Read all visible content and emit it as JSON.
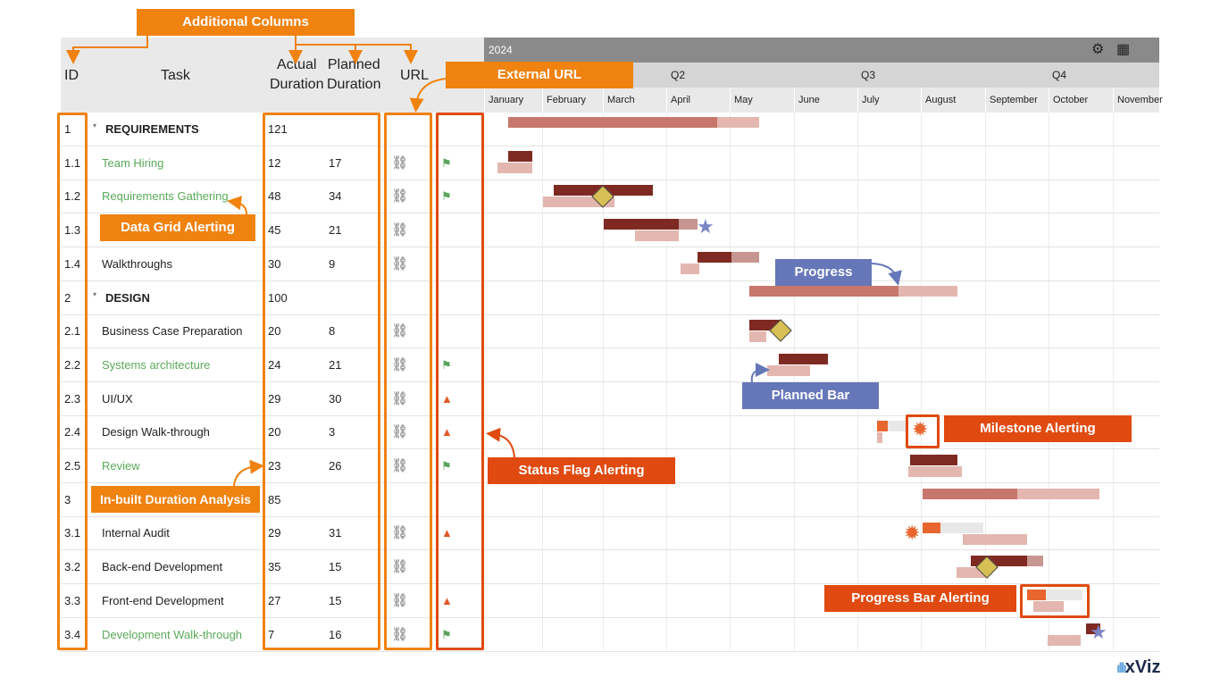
{
  "columns": {
    "id": "ID",
    "task": "Task",
    "actual_line1": "Actual",
    "actual_line2": "Duration",
    "planned_line1": "Planned",
    "planned_line2": "Duration",
    "url": "URL"
  },
  "gantt": {
    "year": "2024",
    "quarters": [
      "Q2",
      "Q3",
      "Q4"
    ],
    "months": [
      "January",
      "February",
      "March",
      "April",
      "May",
      "June",
      "July",
      "August",
      "September",
      "October",
      "November"
    ],
    "settings_icon": "gear-icon",
    "grid_icon": "table-icon"
  },
  "rows": [
    {
      "id": "1",
      "task": "REQUIREMENTS",
      "type": "group",
      "actual": "121",
      "planned": "",
      "url": false,
      "flag": ""
    },
    {
      "id": "1.1",
      "task": "Team Hiring",
      "type": "green",
      "actual": "12",
      "planned": "17",
      "url": true,
      "flag": "green"
    },
    {
      "id": "1.2",
      "task": "Requirements Gathering",
      "type": "green",
      "actual": "48",
      "planned": "34",
      "url": true,
      "flag": "green"
    },
    {
      "id": "1.3",
      "task": "",
      "type": "normal",
      "actual": "45",
      "planned": "21",
      "url": true,
      "flag": ""
    },
    {
      "id": "1.4",
      "task": "Walkthroughs",
      "type": "normal",
      "actual": "30",
      "planned": "9",
      "url": true,
      "flag": ""
    },
    {
      "id": "2",
      "task": "DESIGN",
      "type": "group",
      "actual": "100",
      "planned": "",
      "url": false,
      "flag": ""
    },
    {
      "id": "2.1",
      "task": "Business Case Preparation",
      "type": "normal",
      "actual": "20",
      "planned": "8",
      "url": true,
      "flag": ""
    },
    {
      "id": "2.2",
      "task": "Systems architecture",
      "type": "green",
      "actual": "24",
      "planned": "21",
      "url": true,
      "flag": "green"
    },
    {
      "id": "2.3",
      "task": "UI/UX",
      "type": "normal",
      "actual": "29",
      "planned": "30",
      "url": true,
      "flag": "warn"
    },
    {
      "id": "2.4",
      "task": "Design Walk-through",
      "type": "normal",
      "actual": "20",
      "planned": "3",
      "url": true,
      "flag": "warn"
    },
    {
      "id": "2.5",
      "task": "Review",
      "type": "green",
      "actual": "23",
      "planned": "26",
      "url": true,
      "flag": "green"
    },
    {
      "id": "3",
      "task": "",
      "type": "group",
      "actual": "85",
      "planned": "",
      "url": false,
      "flag": ""
    },
    {
      "id": "3.1",
      "task": "Internal Audit",
      "type": "normal",
      "actual": "29",
      "planned": "31",
      "url": true,
      "flag": "warn"
    },
    {
      "id": "3.2",
      "task": "Back-end Development",
      "type": "normal",
      "actual": "35",
      "planned": "15",
      "url": true,
      "flag": ""
    },
    {
      "id": "3.3",
      "task": "Front-end Development",
      "type": "normal",
      "actual": "27",
      "planned": "15",
      "url": true,
      "flag": "warn"
    },
    {
      "id": "3.4",
      "task": "Development Walk-through",
      "type": "green",
      "actual": "7",
      "planned": "16",
      "url": true,
      "flag": "green"
    }
  ],
  "callouts": {
    "additional_columns": "Additional Columns",
    "external_url": "External URL",
    "data_grid_alerting": "Data Grid Alerting",
    "progress": "Progress",
    "planned_bar": "Planned Bar",
    "milestone_alerting": "Milestone Alerting",
    "status_flag_alerting": "Status Flag Alerting",
    "inbuilt_duration": "In-built Duration Analysis",
    "progress_bar_alerting": "Progress Bar Alerting"
  },
  "brand": "xViz",
  "colors": {
    "accent_orange": "#f0820f",
    "callout_blue": "#6677b9",
    "alert_red": "#e04a10",
    "bar_dark": "#7e2a22",
    "bar_summary": "#c7776c",
    "bar_planned": "#e3b7b0",
    "green_text": "#5aaa5a"
  }
}
